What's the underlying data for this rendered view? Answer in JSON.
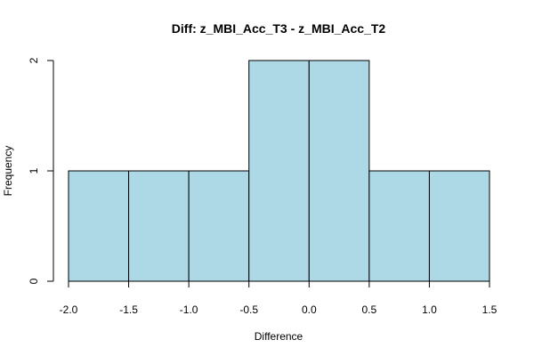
{
  "chart_data": {
    "type": "bar",
    "title": "Diff: z_MBI_Acc_T3 - z_MBI_Acc_T2",
    "xlabel": "Difference",
    "ylabel": "Frequency",
    "bins": [
      {
        "start": -2.0,
        "end": -1.5,
        "count": 1
      },
      {
        "start": -1.5,
        "end": -1.0,
        "count": 1
      },
      {
        "start": -1.0,
        "end": -0.5,
        "count": 1
      },
      {
        "start": -0.5,
        "end": 0.0,
        "count": 2
      },
      {
        "start": 0.0,
        "end": 0.5,
        "count": 2
      },
      {
        "start": 0.5,
        "end": 1.0,
        "count": 1
      },
      {
        "start": 1.0,
        "end": 1.5,
        "count": 1
      }
    ],
    "xlim": [
      -2.0,
      1.5
    ],
    "ylim": [
      0,
      2
    ],
    "x_ticks": [
      -2.0,
      -1.5,
      -1.0,
      -0.5,
      0.0,
      0.5,
      1.0,
      1.5
    ],
    "x_tick_labels": [
      "-2.0",
      "-1.5",
      "-1.0",
      "-0.5",
      "0.0",
      "0.5",
      "1.0",
      "1.5"
    ],
    "y_ticks": [
      0,
      1,
      2
    ],
    "y_tick_labels": [
      "0",
      "1",
      "2"
    ],
    "bar_fill": "#add8e6",
    "bar_stroke": "#000000",
    "grid": false,
    "legend": "none"
  }
}
